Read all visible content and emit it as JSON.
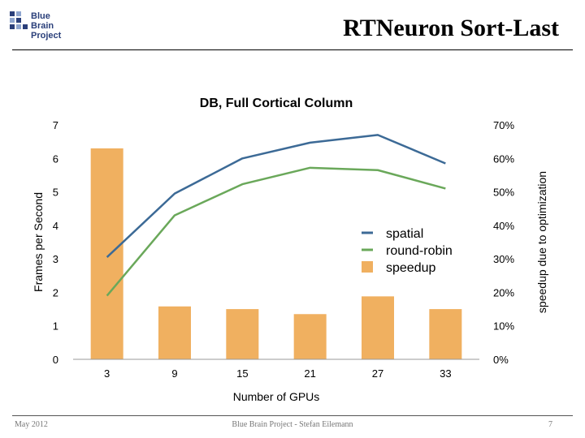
{
  "header": {
    "logo_lines": [
      "Blue",
      "Brain",
      "Project"
    ],
    "title": "RTNeuron Sort-Last"
  },
  "footer": {
    "left": "May 2012",
    "center": "Blue Brain Project - Stefan Eilemann",
    "right": "7"
  },
  "colors": {
    "spatial": "#3c6a96",
    "round_robin": "#6aa85a",
    "speedup": "#f0b060",
    "axis": "#999999"
  },
  "chart_data": {
    "type": "bar",
    "title": "DB, Full Cortical Column",
    "xlabel": "Number of GPUs",
    "ylabel": "Frames per Second",
    "y2label": "speedup due to optimization",
    "categories": [
      "3",
      "9",
      "15",
      "21",
      "27",
      "33"
    ],
    "ylim": [
      0,
      7
    ],
    "y2lim": [
      0,
      70
    ],
    "yticks": [
      "0",
      "1",
      "2",
      "3",
      "4",
      "5",
      "6",
      "7"
    ],
    "y2ticks": [
      "0%",
      "10%",
      "20%",
      "30%",
      "40%",
      "50%",
      "60%",
      "70%"
    ],
    "series": [
      {
        "name": "spatial",
        "kind": "line",
        "axis": "left",
        "values": [
          3.05,
          4.95,
          6.0,
          6.47,
          6.7,
          5.85
        ]
      },
      {
        "name": "round-robin",
        "kind": "line",
        "axis": "left",
        "values": [
          1.9,
          4.3,
          5.23,
          5.72,
          5.65,
          5.1
        ]
      },
      {
        "name": "speedup",
        "kind": "bar",
        "axis": "right",
        "values": [
          63,
          15.8,
          15,
          13.5,
          18.8,
          15
        ]
      }
    ],
    "legend_position": "center-right",
    "grid": false
  }
}
